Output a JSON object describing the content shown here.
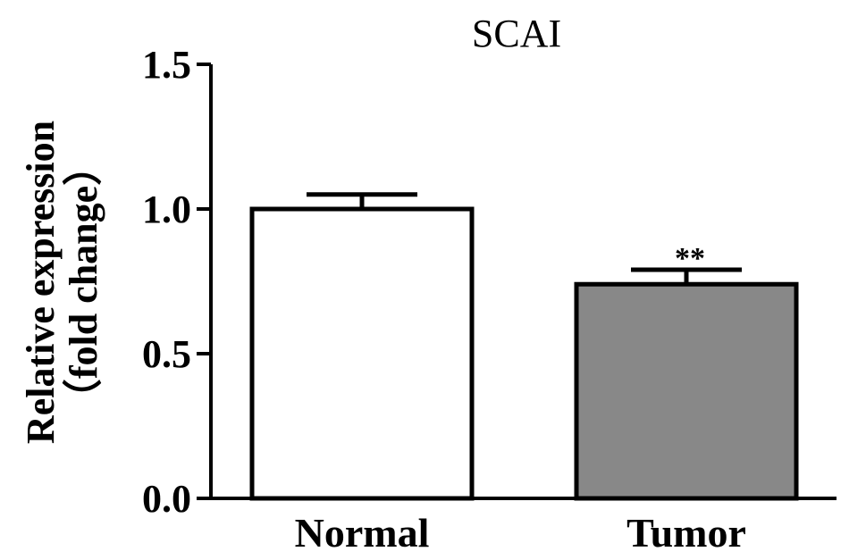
{
  "chart_data": {
    "type": "bar",
    "title": "SCAI",
    "xlabel": "",
    "ylabel_line1": "Relative expression",
    "ylabel_line2": "（fold change）",
    "ylim": [
      0,
      1.5
    ],
    "yticks": [
      "0.0",
      "0.5",
      "1.0",
      "1.5"
    ],
    "categories": [
      "Normal",
      "Tumor"
    ],
    "values": [
      1.0,
      0.74
    ],
    "errors": [
      0.05,
      0.05
    ],
    "bar_colors": [
      "#ffffff",
      "#888888"
    ],
    "annotations": [
      "",
      "**"
    ],
    "grid": false
  }
}
